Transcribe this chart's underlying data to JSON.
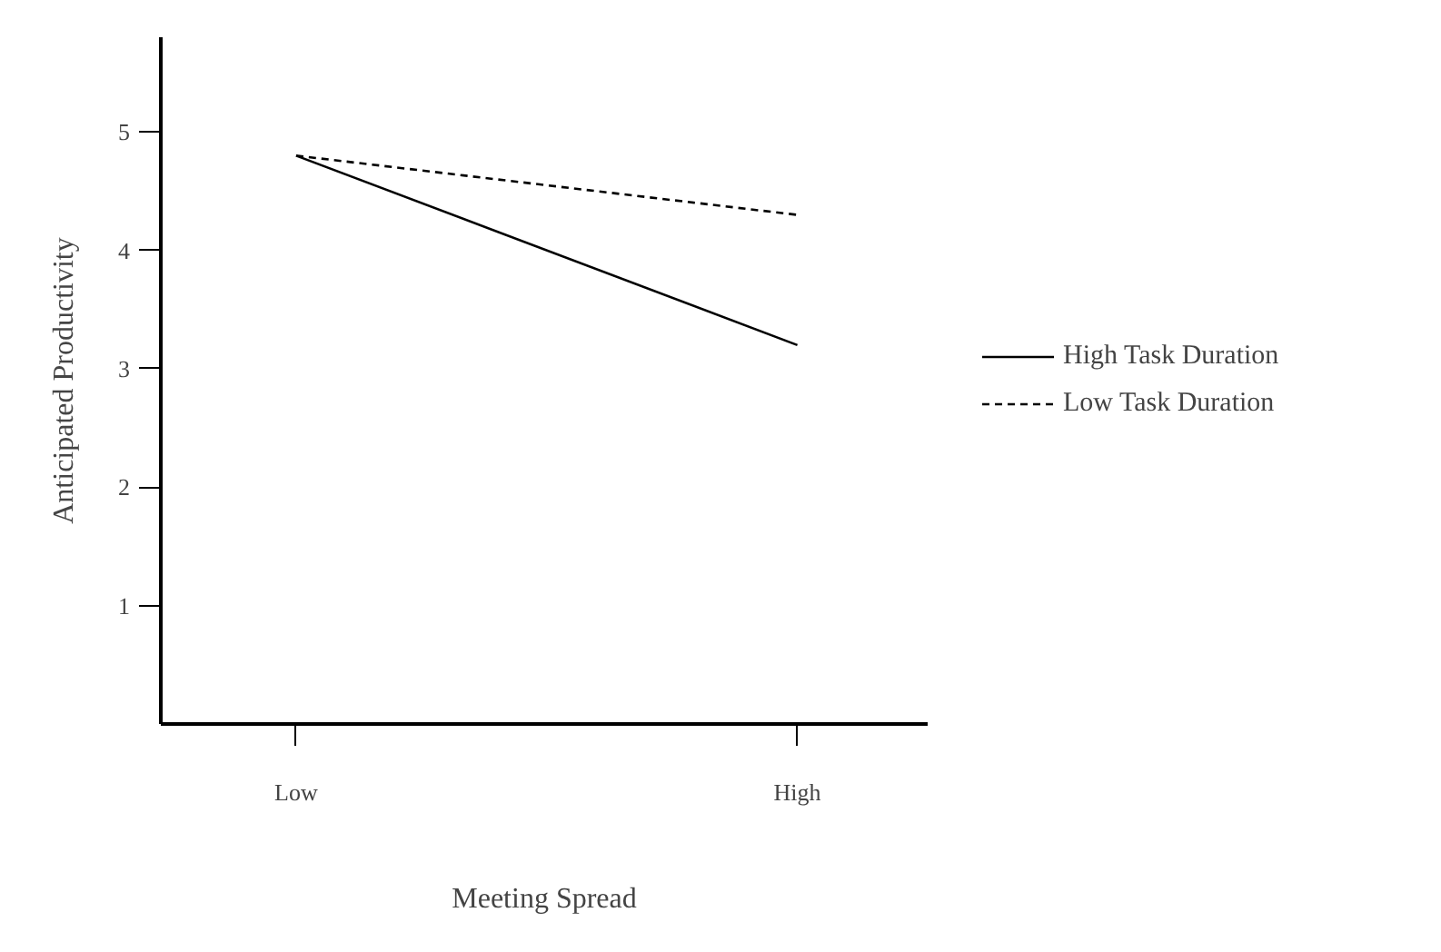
{
  "chart_data": {
    "type": "line",
    "xlabel": "Meeting Spread",
    "ylabel": "Anticipated Productivity",
    "categories": [
      "Low",
      "High"
    ],
    "ylim": [
      0,
      5.8
    ],
    "yticks": [
      1,
      2,
      3,
      4,
      5
    ],
    "series": [
      {
        "name": "High Task Duration",
        "color": "#000000",
        "line_style": "solid",
        "values": [
          4.8,
          3.2
        ]
      },
      {
        "name": "Low Task Duration",
        "color": "#000000",
        "line_style": "dashed",
        "values": [
          4.8,
          4.3
        ]
      }
    ],
    "marker": "none",
    "grid": false,
    "legend": "right"
  }
}
